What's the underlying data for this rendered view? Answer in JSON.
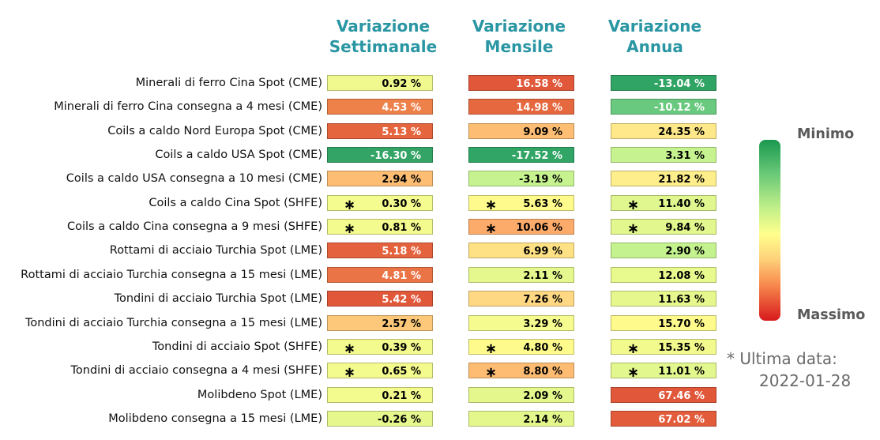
{
  "chart_data": {
    "type": "heatmap",
    "columns": [
      "Variazione\nSettimanale",
      "Variazione\nMensile",
      "Variazione\nAnnua"
    ],
    "rows": [
      {
        "label": "Minerali di ferro Cina Spot (CME)",
        "values": [
          0.92,
          16.58,
          -13.04
        ],
        "labels": [
          "0.92 %",
          "16.58 %",
          "-13.04 %"
        ],
        "stars": [
          false,
          false,
          false
        ],
        "colors": [
          "#f0f98e",
          "#e0573a",
          "#30a464"
        ]
      },
      {
        "label": "Minerali di ferro Cina consegna a 4 mesi (CME)",
        "values": [
          4.53,
          14.98,
          -10.12
        ],
        "labels": [
          "4.53 %",
          "14.98 %",
          "-10.12 %"
        ],
        "stars": [
          false,
          false,
          false
        ],
        "colors": [
          "#ee8049",
          "#e6683e",
          "#69c97e"
        ]
      },
      {
        "label": "Coils a caldo Nord Europa Spot (CME)",
        "values": [
          5.13,
          9.09,
          24.35
        ],
        "labels": [
          "5.13 %",
          "9.09 %",
          "24.35 %"
        ],
        "stars": [
          false,
          false,
          false
        ],
        "colors": [
          "#e5653e",
          "#fdbe74",
          "#fee88a"
        ]
      },
      {
        "label": "Coils a caldo USA Spot (CME)",
        "values": [
          -16.3,
          -17.52,
          3.31
        ],
        "labels": [
          "-16.30 %",
          "-17.52 %",
          "3.31 %"
        ],
        "stars": [
          false,
          false,
          false
        ],
        "colors": [
          "#33a466",
          "#31a565",
          "#c6f390"
        ]
      },
      {
        "label": "Coils a caldo USA consegna a 10 mesi (CME)",
        "values": [
          2.94,
          -3.19,
          21.82
        ],
        "labels": [
          "2.94 %",
          "-3.19 %",
          "21.82 %"
        ],
        "stars": [
          false,
          false,
          false
        ],
        "colors": [
          "#fdbe74",
          "#c6f390",
          "#feee8c"
        ]
      },
      {
        "label": "Coils a caldo Cina Spot (SHFE)",
        "values": [
          0.3,
          5.63,
          11.4
        ],
        "labels": [
          "0.30 %",
          "5.63 %",
          "11.40 %"
        ],
        "stars": [
          true,
          true,
          true
        ],
        "colors": [
          "#f4fb8f",
          "#fefb8c",
          "#dff78e"
        ]
      },
      {
        "label": "Coils a caldo Cina consegna a 9 mesi (SHFE)",
        "values": [
          0.81,
          10.06,
          9.84
        ],
        "labels": [
          "0.81 %",
          "10.06 %",
          "9.84 %"
        ],
        "stars": [
          true,
          true,
          true
        ],
        "colors": [
          "#f3fa8e",
          "#fcab6b",
          "#e2f78d"
        ]
      },
      {
        "label": "Rottami di acciaio Turchia Spot (LME)",
        "values": [
          5.18,
          6.99,
          2.9
        ],
        "labels": [
          "5.18 %",
          "6.99 %",
          "2.90 %"
        ],
        "stars": [
          false,
          false,
          false
        ],
        "colors": [
          "#e4623d",
          "#fee184",
          "#c4f28e"
        ]
      },
      {
        "label": "Rottami di acciaio Turchia consegna a 15 mesi (LME)",
        "values": [
          4.81,
          2.11,
          12.08
        ],
        "labels": [
          "4.81 %",
          "2.11 %",
          "12.08 %"
        ],
        "stars": [
          false,
          false,
          false
        ],
        "colors": [
          "#ea7446",
          "#e5f88d",
          "#e8f98d"
        ]
      },
      {
        "label": "Tondini di acciaio Turchia Spot (LME)",
        "values": [
          5.42,
          7.26,
          11.63
        ],
        "labels": [
          "5.42 %",
          "7.26 %",
          "11.63 %"
        ],
        "stars": [
          false,
          false,
          false
        ],
        "colors": [
          "#e0573a",
          "#fed883",
          "#e6f88d"
        ]
      },
      {
        "label": "Tondini di acciaio Turchia consegna a 15 mesi (LME)",
        "values": [
          2.57,
          3.29,
          15.7
        ],
        "labels": [
          "2.57 %",
          "3.29 %",
          "15.70 %"
        ],
        "stars": [
          false,
          false,
          false
        ],
        "colors": [
          "#fdc879",
          "#f5fb8e",
          "#fefb8c"
        ]
      },
      {
        "label": "Tondini di acciaio Spot (SHFE)",
        "values": [
          0.39,
          4.8,
          15.35
        ],
        "labels": [
          "0.39 %",
          "4.80 %",
          "15.35 %"
        ],
        "stars": [
          true,
          true,
          true
        ],
        "colors": [
          "#f3fa8e",
          "#fefb8c",
          "#f2fa8e"
        ]
      },
      {
        "label": "Tondini di acciaio consegna a 4 mesi (SHFE)",
        "values": [
          0.65,
          8.8,
          11.01
        ],
        "labels": [
          "0.65 %",
          "8.80 %",
          "11.01 %"
        ],
        "stars": [
          true,
          true,
          true
        ],
        "colors": [
          "#f3fa8e",
          "#fdbc72",
          "#e2f78d"
        ]
      },
      {
        "label": "Molibdeno Spot (LME)",
        "values": [
          0.21,
          2.09,
          67.46
        ],
        "labels": [
          "0.21 %",
          "2.09 %",
          "67.46 %"
        ],
        "stars": [
          false,
          false,
          false
        ],
        "colors": [
          "#f3fa8e",
          "#e4f78d",
          "#e0573a"
        ]
      },
      {
        "label": "Molibdeno consegna a 15 mesi (LME)",
        "values": [
          -0.26,
          2.14,
          67.02
        ],
        "labels": [
          "-0.26 %",
          "2.14 %",
          "67.02 %"
        ],
        "stars": [
          false,
          false,
          false
        ],
        "colors": [
          "#e6f88d",
          "#e4f78d",
          "#e25b3b"
        ]
      }
    ],
    "legend": {
      "top": "Minimo",
      "bottom": "Massimo",
      "placement": "right"
    },
    "note": {
      "prefix": "* Ultima data:",
      "date": "2022-01-28"
    },
    "dark_text_color": "#000000",
    "light_text_color": "#ffffff"
  }
}
